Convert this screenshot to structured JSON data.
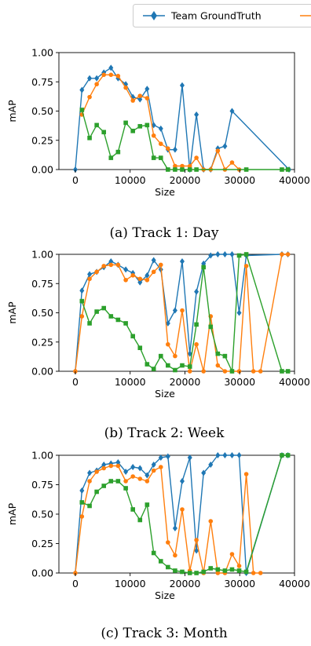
{
  "legend": {
    "entries": [
      {
        "label": "Team GroundTruth",
        "color": "#1f77b4",
        "marker": "diamond"
      },
      {
        "label": "",
        "color": "#ff7f0e",
        "marker": "circle"
      }
    ]
  },
  "chart_data": [
    {
      "type": "line",
      "caption": "(a) Track 1: Day",
      "xlabel": "Size",
      "ylabel": "mAP",
      "xlim": [
        -3000,
        40000
      ],
      "ylim": [
        0,
        1
      ],
      "xticks": [
        0,
        10000,
        20000,
        30000,
        40000
      ],
      "yticks": [
        0.0,
        0.25,
        0.5,
        0.75,
        1.0
      ],
      "series": [
        {
          "color": "#1f77b4",
          "marker": "diamond",
          "x": [
            0,
            1200,
            2600,
            3900,
            5200,
            6500,
            7800,
            9200,
            10500,
            11800,
            13100,
            14300,
            15600,
            16900,
            18200,
            19500,
            20900,
            22100,
            23400,
            24700,
            26000,
            27300,
            28600,
            39000
          ],
          "y": [
            0.0,
            0.68,
            0.78,
            0.78,
            0.83,
            0.87,
            0.78,
            0.73,
            0.62,
            0.6,
            0.69,
            0.38,
            0.35,
            0.17,
            0.17,
            0.72,
            0.0,
            0.47,
            0.0,
            0.0,
            0.18,
            0.2,
            0.5,
            0.0
          ]
        },
        {
          "color": "#ff7f0e",
          "marker": "circle",
          "x": [
            1200,
            2600,
            3900,
            5200,
            6500,
            7800,
            9200,
            10500,
            11800,
            13100,
            14300,
            15600,
            16900,
            18200,
            19500,
            20900,
            22100,
            23400,
            24700,
            26000,
            27300,
            28600,
            29900
          ],
          "y": [
            0.47,
            0.62,
            0.73,
            0.81,
            0.81,
            0.8,
            0.7,
            0.59,
            0.63,
            0.61,
            0.29,
            0.22,
            0.18,
            0.03,
            0.03,
            0.03,
            0.1,
            0.0,
            0.0,
            0.16,
            0.0,
            0.06,
            0.0
          ]
        },
        {
          "color": "#2ca02c",
          "marker": "square",
          "x": [
            1200,
            2600,
            3900,
            5200,
            6500,
            7800,
            9200,
            10500,
            11800,
            13100,
            14300,
            15600,
            16900,
            18200,
            19500,
            20900,
            22100,
            31200,
            37700,
            38800
          ],
          "y": [
            0.51,
            0.27,
            0.38,
            0.32,
            0.1,
            0.15,
            0.4,
            0.33,
            0.37,
            0.38,
            0.1,
            0.1,
            0.0,
            0.0,
            0.0,
            0.0,
            0.0,
            0.0,
            0.0,
            0.0
          ]
        }
      ]
    },
    {
      "type": "line",
      "caption": "(b) Track 2: Week",
      "xlabel": "Size",
      "ylabel": "mAP",
      "xlim": [
        -3000,
        40000
      ],
      "ylim": [
        0,
        1
      ],
      "xticks": [
        0,
        10000,
        20000,
        30000,
        40000
      ],
      "yticks": [
        0.0,
        0.25,
        0.5,
        0.75,
        1.0
      ],
      "series": [
        {
          "color": "#1f77b4",
          "marker": "diamond",
          "x": [
            0,
            1200,
            2600,
            3900,
            5200,
            6500,
            7800,
            9200,
            10500,
            11800,
            13100,
            14300,
            15600,
            16900,
            18200,
            19500,
            20900,
            22100,
            23400,
            24700,
            26000,
            27300,
            28600,
            29900,
            31200,
            37700,
            38800
          ],
          "y": [
            0.0,
            0.69,
            0.83,
            0.85,
            0.89,
            0.94,
            0.91,
            0.87,
            0.84,
            0.76,
            0.82,
            0.95,
            0.87,
            0.41,
            0.52,
            0.94,
            0.15,
            0.68,
            0.92,
            0.99,
            1.0,
            1.0,
            1.0,
            0.5,
            0.99,
            1.0,
            1.0
          ]
        },
        {
          "color": "#ff7f0e",
          "marker": "circle",
          "x": [
            0,
            1200,
            2600,
            3900,
            5200,
            6500,
            7800,
            9200,
            10500,
            11800,
            13100,
            14300,
            15600,
            16900,
            18200,
            19500,
            20900,
            22100,
            23400,
            24700,
            26000,
            27300,
            28600,
            29900,
            31200,
            32500,
            33800,
            37700,
            38800
          ],
          "y": [
            0.0,
            0.47,
            0.79,
            0.85,
            0.9,
            0.91,
            0.91,
            0.78,
            0.82,
            0.79,
            0.78,
            0.85,
            0.91,
            0.23,
            0.13,
            0.52,
            0.0,
            0.23,
            0.0,
            0.47,
            0.05,
            0.0,
            0.0,
            0.0,
            0.9,
            0.0,
            0.0,
            1.0,
            1.0
          ]
        },
        {
          "color": "#2ca02c",
          "marker": "square",
          "x": [
            1200,
            2600,
            3900,
            5200,
            6500,
            7800,
            9200,
            10500,
            11800,
            13100,
            14300,
            15600,
            16900,
            18200,
            19500,
            20900,
            22100,
            23400,
            24700,
            26000,
            27300,
            28600,
            29900,
            31200,
            37700,
            38800
          ],
          "y": [
            0.6,
            0.41,
            0.51,
            0.54,
            0.47,
            0.44,
            0.41,
            0.3,
            0.2,
            0.06,
            0.02,
            0.13,
            0.05,
            0.01,
            0.05,
            0.04,
            0.4,
            0.89,
            0.38,
            0.15,
            0.13,
            0.0,
            0.99,
            1.0,
            0.0,
            0.0
          ]
        }
      ]
    },
    {
      "type": "line",
      "caption": "(c) Track 3: Month",
      "xlabel": "Size",
      "ylabel": "mAP",
      "xlim": [
        -3000,
        40000
      ],
      "ylim": [
        0,
        1
      ],
      "xticks": [
        0,
        10000,
        20000,
        30000,
        40000
      ],
      "yticks": [
        0.0,
        0.25,
        0.5,
        0.75,
        1.0
      ],
      "series": [
        {
          "color": "#1f77b4",
          "marker": "diamond",
          "x": [
            0,
            1200,
            2600,
            3900,
            5200,
            6500,
            7800,
            9200,
            10500,
            11800,
            13100,
            14300,
            15600,
            16900,
            18200,
            19500,
            20900,
            22100,
            23400,
            24700,
            26000,
            27300,
            28600,
            29900,
            31200,
            37700,
            38800
          ],
          "y": [
            0.0,
            0.7,
            0.85,
            0.87,
            0.92,
            0.93,
            0.94,
            0.86,
            0.9,
            0.89,
            0.83,
            0.92,
            0.98,
            0.99,
            0.38,
            0.78,
            0.98,
            0.19,
            0.85,
            0.92,
            1.0,
            1.0,
            1.0,
            1.0,
            0.0,
            1.0,
            1.0
          ]
        },
        {
          "color": "#ff7f0e",
          "marker": "circle",
          "x": [
            0,
            1200,
            2600,
            3900,
            5200,
            6500,
            7800,
            9200,
            10500,
            11800,
            13100,
            14300,
            15600,
            16900,
            18200,
            19500,
            20900,
            22100,
            23400,
            24700,
            26000,
            27300,
            28600,
            29900,
            31200,
            32500,
            33800
          ],
          "y": [
            0.0,
            0.48,
            0.78,
            0.86,
            0.89,
            0.91,
            0.91,
            0.78,
            0.82,
            0.8,
            0.78,
            0.87,
            0.9,
            0.26,
            0.15,
            0.54,
            0.02,
            0.28,
            0.0,
            0.44,
            0.0,
            0.0,
            0.16,
            0.06,
            0.84,
            0.0,
            0.0
          ]
        },
        {
          "color": "#2ca02c",
          "marker": "square",
          "x": [
            1200,
            2600,
            3900,
            5200,
            6500,
            7800,
            9200,
            10500,
            11800,
            13100,
            14300,
            15600,
            16900,
            18200,
            19500,
            20900,
            22100,
            23400,
            24700,
            26000,
            27300,
            28600,
            29900,
            31200,
            37700,
            38800
          ],
          "y": [
            0.6,
            0.57,
            0.69,
            0.74,
            0.78,
            0.78,
            0.72,
            0.54,
            0.45,
            0.58,
            0.17,
            0.1,
            0.05,
            0.02,
            0.01,
            0.0,
            0.0,
            0.01,
            0.04,
            0.03,
            0.02,
            0.03,
            0.02,
            0.01,
            1.0,
            1.0
          ]
        }
      ]
    }
  ]
}
